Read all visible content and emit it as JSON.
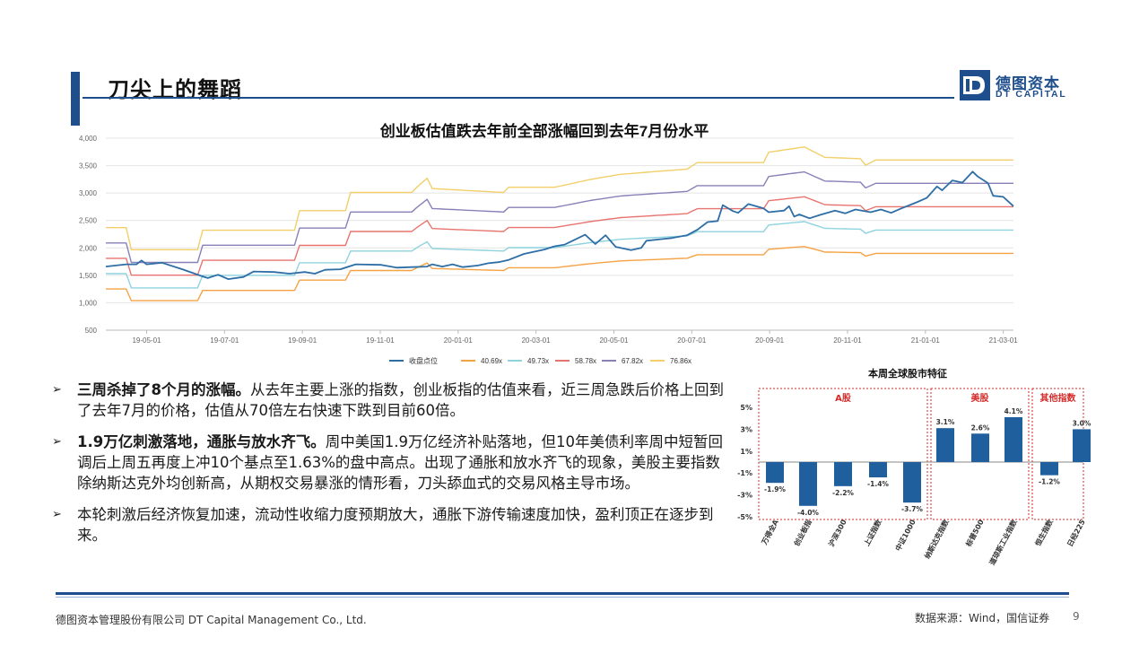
{
  "page": {
    "title": "刀尖上的舞蹈",
    "logo_cn": "德图资本",
    "logo_en": "DT CAPITAL",
    "footer_company": "德图资本管理股份有限公司  DT Capital Management  Co., Ltd.",
    "footer_source": "数据来源：Wind，国信证券",
    "page_number": "9"
  },
  "bullets": [
    {
      "bold": "三周杀掉了8个月的涨幅。",
      "text": "从去年主要上涨的指数，创业板指的估值来看，近三周急跌后价格上回到了去年7月的价格，估值从70倍左右快速下跌到目前60倍。"
    },
    {
      "bold": "1.9万亿刺激落地，通胀与放水齐飞。",
      "text": "周中美国1.9万亿经济补贴落地，但10年美债利率周中短暂回调后上周五再度上冲10个基点至1.63%的盘中高点。出现了通胀和放水齐飞的现象，美股主要指数除纳斯达克外均创新高，从期权交易暴涨的情形看，刀头舔血式的交易风格主导市场。"
    },
    {
      "bold": "",
      "text": "本轮刺激后经济恢复加速，流动性收缩力度预期放大，通胀下游传输速度加快，盈利顶正在逐步到来。"
    }
  ],
  "chart_data": [
    {
      "type": "line",
      "title": "创业板估值跌去年前全部涨幅回到去年7月份水平",
      "x_labels": [
        "19-05-01",
        "19-07-01",
        "19-09-01",
        "19-11-01",
        "20-01-01",
        "20-03-01",
        "20-05-01",
        "20-07-01",
        "20-09-01",
        "20-11-01",
        "21-01-01",
        "21-03-01"
      ],
      "y_ticks": [
        "500",
        "1,000",
        "1,500",
        "2,000",
        "2,500",
        "3,000",
        "3,500",
        "4,000"
      ],
      "ylim": [
        500,
        4000
      ],
      "grid": true,
      "legend_position": "bottom",
      "band_profile": [
        [
          0,
          0
        ],
        [
          4,
          0
        ],
        [
          5,
          -0.17
        ],
        [
          18,
          -0.17
        ],
        [
          19,
          -0.02
        ],
        [
          37,
          -0.02
        ],
        [
          38,
          0.13
        ],
        [
          47,
          0.13
        ],
        [
          48,
          0.27
        ],
        [
          60,
          0.27
        ],
        [
          61,
          0.31
        ],
        [
          63,
          0.38
        ],
        [
          64,
          0.3
        ],
        [
          78,
          0.27
        ],
        [
          79,
          0.31
        ],
        [
          88,
          0.31
        ],
        [
          95,
          0.37
        ],
        [
          101,
          0.41
        ],
        [
          114,
          0.45
        ],
        [
          116,
          0.5
        ],
        [
          129,
          0.5
        ],
        [
          130,
          0.58
        ],
        [
          137,
          0.62
        ],
        [
          141,
          0.54
        ],
        [
          148,
          0.53
        ],
        [
          149,
          0.48
        ],
        [
          151,
          0.52
        ]
      ],
      "series": [
        {
          "name": "收盘点位",
          "color": "#2e6ea6",
          "points": [
            [
              0,
              1660
            ],
            [
              4,
              1700
            ],
            [
              6,
              1700
            ],
            [
              7,
              1770
            ],
            [
              8,
              1700
            ],
            [
              11,
              1730
            ],
            [
              15,
              1610
            ],
            [
              19,
              1480
            ],
            [
              20,
              1450
            ],
            [
              22,
              1510
            ],
            [
              24,
              1430
            ],
            [
              27,
              1470
            ],
            [
              29,
              1570
            ],
            [
              33,
              1560
            ],
            [
              36,
              1530
            ],
            [
              39,
              1560
            ],
            [
              41,
              1530
            ],
            [
              43,
              1600
            ],
            [
              46,
              1610
            ],
            [
              49,
              1700
            ],
            [
              54,
              1690
            ],
            [
              57,
              1640
            ],
            [
              60,
              1650
            ],
            [
              63,
              1660
            ],
            [
              64,
              1700
            ],
            [
              66,
              1660
            ],
            [
              68,
              1700
            ],
            [
              70,
              1650
            ],
            [
              73,
              1680
            ],
            [
              75,
              1720
            ],
            [
              77,
              1740
            ],
            [
              79,
              1780
            ],
            [
              82,
              1890
            ],
            [
              86,
              1970
            ],
            [
              88,
              2030
            ],
            [
              90,
              2060
            ],
            [
              92,
              2150
            ],
            [
              94,
              2240
            ],
            [
              96,
              2070
            ],
            [
              98,
              2230
            ],
            [
              100,
              2020
            ],
            [
              103,
              1960
            ],
            [
              105,
              2000
            ],
            [
              106,
              2130
            ],
            [
              109,
              2160
            ],
            [
              111,
              2180
            ],
            [
              114,
              2230
            ],
            [
              116,
              2330
            ],
            [
              118,
              2470
            ],
            [
              120,
              2490
            ],
            [
              121,
              2780
            ],
            [
              123,
              2670
            ],
            [
              124,
              2640
            ],
            [
              126,
              2800
            ],
            [
              129,
              2720
            ],
            [
              130,
              2650
            ],
            [
              133,
              2680
            ],
            [
              134,
              2760
            ],
            [
              135,
              2570
            ],
            [
              136,
              2610
            ],
            [
              138,
              2540
            ],
            [
              140,
              2600
            ],
            [
              143,
              2680
            ],
            [
              145,
              2630
            ],
            [
              147,
              2700
            ],
            [
              150,
              2650
            ],
            [
              152,
              2700
            ],
            [
              154,
              2640
            ],
            [
              156,
              2720
            ],
            [
              159,
              2830
            ],
            [
              161,
              2910
            ],
            [
              163,
              3120
            ],
            [
              164,
              3050
            ],
            [
              166,
              3230
            ],
            [
              168,
              3190
            ],
            [
              170,
              3390
            ],
            [
              171,
              3300
            ],
            [
              173,
              3180
            ],
            [
              174,
              2950
            ],
            [
              176,
              2930
            ],
            [
              178,
              2760
            ]
          ]
        },
        {
          "name": "40.69x",
          "color": "#f5a244",
          "base": 1250
        },
        {
          "name": "49.73x",
          "color": "#8ed3de",
          "base": 1530
        },
        {
          "name": "58.78x",
          "color": "#e8746f",
          "base": 1810
        },
        {
          "name": "67.82x",
          "color": "#8880b8",
          "base": 2090
        },
        {
          "name": "76.86x",
          "color": "#f2cf6a",
          "base": 2370
        }
      ]
    },
    {
      "type": "bar",
      "title": "本周全球股市特征",
      "groups": [
        {
          "label": "A股",
          "members": [
            "万得全A",
            "创业板指",
            "沪深300",
            "上证指数",
            "中证1000"
          ]
        },
        {
          "label": "美股",
          "members": [
            "纳斯达克指数",
            "标普500",
            "道琼斯工业指数"
          ]
        },
        {
          "label": "其他指数",
          "members": [
            "恒生指数",
            "日经225"
          ]
        }
      ],
      "categories": [
        "万得全A",
        "创业板指",
        "沪深300",
        "上证指数",
        "中证1000",
        "纳斯达克指数",
        "标普500",
        "道琼斯工业指数",
        "恒生指数",
        "日经225"
      ],
      "values": [
        -1.9,
        -4.0,
        -2.2,
        -1.4,
        -3.7,
        3.1,
        2.6,
        4.1,
        -1.2,
        3.0
      ],
      "value_labels": [
        "-1.9%",
        "-4.0%",
        "-2.2%",
        "-1.4%",
        "-3.7%",
        "3.1%",
        "2.6%",
        "4.1%",
        "-1.2%",
        "3.0%"
      ],
      "y_ticks": [
        "5%",
        "3%",
        "1%",
        "-1%",
        "-3%",
        "-5%"
      ],
      "ylim": [
        -5,
        5
      ],
      "bar_color": "#1f5f9e",
      "group_label_color": "#d42a2a"
    }
  ]
}
